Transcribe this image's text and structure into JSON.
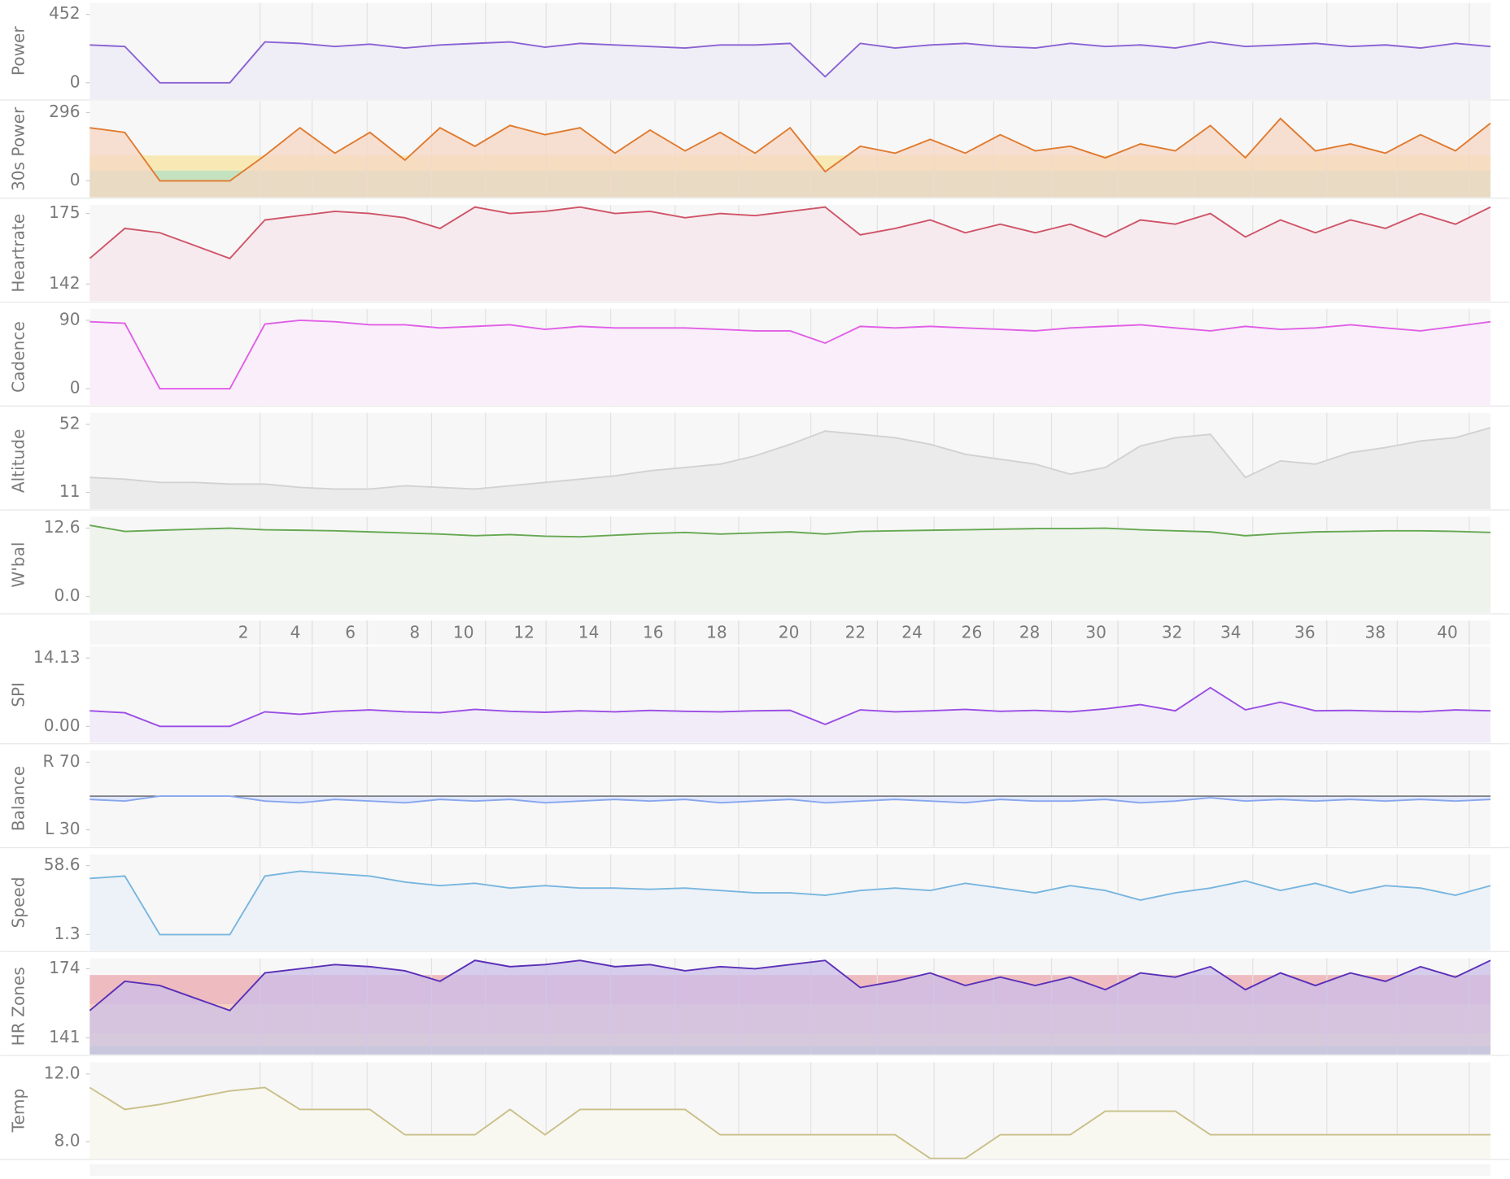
{
  "chart_data": {
    "type": "multi-panel",
    "x": [
      0,
      2,
      4,
      6,
      8,
      10,
      12,
      14,
      16,
      18,
      20,
      22,
      24,
      26,
      28,
      30,
      32,
      34,
      36,
      38,
      40,
      42,
      44,
      46,
      48,
      50,
      52,
      54,
      56,
      58,
      60,
      62,
      64,
      66,
      68,
      70,
      72,
      74,
      76,
      78,
      80
    ],
    "xlim": [
      0,
      80
    ],
    "xticks": [
      {
        "value": 9.18,
        "label": "2"
      },
      {
        "value": 12.15,
        "label": "4"
      },
      {
        "value": 15.29,
        "label": "6"
      },
      {
        "value": 18.97,
        "label": "8"
      },
      {
        "value": 22.05,
        "label": "10"
      },
      {
        "value": 25.51,
        "label": "12"
      },
      {
        "value": 29.2,
        "label": "14"
      },
      {
        "value": 32.88,
        "label": "16"
      },
      {
        "value": 36.51,
        "label": "18"
      },
      {
        "value": 40.63,
        "label": "20"
      },
      {
        "value": 44.43,
        "label": "22"
      },
      {
        "value": 47.67,
        "label": "24"
      },
      {
        "value": 51.08,
        "label": "26"
      },
      {
        "value": 54.38,
        "label": "28"
      },
      {
        "value": 58.17,
        "label": "30"
      },
      {
        "value": 62.52,
        "label": "32"
      },
      {
        "value": 65.87,
        "label": "34"
      },
      {
        "value": 70.1,
        "label": "36"
      },
      {
        "value": 74.12,
        "label": "38"
      },
      {
        "value": 78.24,
        "label": "40"
      }
    ],
    "grid": true,
    "panels": [
      {
        "type": "area",
        "y_label": "Power",
        "color": "#8a62d4",
        "fill": "#efedf6",
        "ylim": [
          -108,
          528
        ],
        "yticks": [
          0,
          452
        ],
        "values": [
          250,
          240,
          0,
          0,
          0,
          270,
          260,
          240,
          255,
          230,
          250,
          260,
          270,
          235,
          260,
          250,
          240,
          230,
          250,
          250,
          260,
          40,
          260,
          230,
          250,
          260,
          240,
          230,
          260,
          240,
          250,
          230,
          270,
          240,
          250,
          260,
          240,
          250,
          230,
          260,
          240
        ]
      },
      {
        "type": "area",
        "y_label": "30s Power",
        "color": "#e07a2e",
        "fill": "#f6d7c4",
        "ylim": [
          -71,
          346
        ],
        "yticks": [
          0,
          296
        ],
        "zones": [
          {
            "from": -71,
            "to": 45,
            "color": "#c4e2c0"
          },
          {
            "from": 45,
            "to": 110,
            "color": "#f8e9b4"
          }
        ],
        "values": [
          230,
          210,
          0,
          0,
          0,
          110,
          230,
          120,
          210,
          90,
          230,
          150,
          240,
          200,
          230,
          120,
          220,
          130,
          210,
          120,
          230,
          40,
          150,
          120,
          180,
          120,
          200,
          130,
          150,
          100,
          160,
          130,
          240,
          100,
          270,
          130,
          160,
          120,
          200,
          130,
          250
        ]
      },
      {
        "type": "area",
        "y_label": "Heartrate",
        "color": "#cf5468",
        "fill": "#f7eaee",
        "ylim": [
          134,
          179
        ],
        "yticks": [
          142,
          175
        ],
        "values": [
          154,
          168,
          166,
          160,
          154,
          172,
          174,
          176,
          175,
          173,
          168,
          178,
          175,
          176,
          178,
          175,
          176,
          173,
          175,
          174,
          176,
          178,
          165,
          168,
          172,
          166,
          170,
          166,
          170,
          164,
          172,
          170,
          175,
          164,
          172,
          166,
          172,
          168,
          175,
          170,
          178
        ]
      },
      {
        "type": "area",
        "y_label": "Cadence",
        "color": "#e15fe6",
        "fill": "#f9eefa",
        "ylim": [
          -21.5,
          105
        ],
        "yticks": [
          0,
          90
        ],
        "values": [
          88,
          86,
          0,
          0,
          0,
          85,
          90,
          88,
          84,
          84,
          80,
          82,
          84,
          78,
          82,
          80,
          80,
          80,
          78,
          76,
          76,
          60,
          82,
          80,
          82,
          80,
          78,
          76,
          80,
          82,
          84,
          80,
          76,
          82,
          78,
          80,
          84,
          80,
          76,
          82,
          88
        ]
      },
      {
        "type": "area",
        "y_label": "Altitude",
        "color": "#d2d2d2",
        "fill": "#ebebeb",
        "ylim": [
          1,
          59
        ],
        "yticks": [
          11,
          52
        ],
        "values": [
          20,
          19,
          17,
          17,
          16,
          16,
          14,
          13,
          13,
          15,
          14,
          13,
          15,
          17,
          19,
          21,
          24,
          26,
          28,
          33,
          40,
          48,
          46,
          44,
          40,
          34,
          31,
          28,
          22,
          26,
          39,
          44,
          46,
          20,
          30,
          28,
          35,
          38,
          42,
          44,
          50
        ]
      },
      {
        "type": "area",
        "y_label": "W'bal",
        "color": "#66a852",
        "fill": "#eef3ec",
        "ylim": [
          -3,
          14.7
        ],
        "yticks": [
          {
            "value": 0,
            "label": "0.0"
          },
          12.6
        ],
        "values": [
          13.1,
          12.0,
          12.2,
          12.4,
          12.6,
          12.3,
          12.2,
          12.1,
          11.9,
          11.7,
          11.5,
          11.2,
          11.4,
          11.1,
          11.0,
          11.3,
          11.6,
          11.8,
          11.5,
          11.7,
          11.9,
          11.5,
          12.0,
          12.1,
          12.2,
          12.3,
          12.4,
          12.5,
          12.5,
          12.6,
          12.3,
          12.1,
          11.9,
          11.2,
          11.6,
          11.9,
          12.0,
          12.1,
          12.1,
          12.0,
          11.8
        ]
      },
      {
        "type": "area",
        "y_label": "SPI",
        "color": "#9a4ce4",
        "fill": "#f1ecf8",
        "ylim": [
          -3.4,
          16.5
        ],
        "yticks": [
          {
            "value": 0,
            "label": "0.00"
          },
          14.13
        ],
        "values": [
          3.2,
          2.8,
          0,
          0,
          0,
          3.0,
          2.5,
          3.1,
          3.4,
          3.0,
          2.8,
          3.5,
          3.1,
          2.9,
          3.2,
          3.0,
          3.3,
          3.1,
          3.0,
          3.2,
          3.3,
          0.4,
          3.4,
          3.0,
          3.2,
          3.5,
          3.1,
          3.3,
          3.0,
          3.6,
          4.5,
          3.2,
          8.0,
          3.4,
          5.0,
          3.2,
          3.3,
          3.1,
          3.0,
          3.4,
          3.2
        ]
      },
      {
        "type": "balance",
        "y_label": "Balance",
        "color": "#88a6ee",
        "fill": "#dfe6fb",
        "ylim": [
          20,
          77
        ],
        "yticks": [
          {
            "value": 30,
            "label": "L 30"
          },
          {
            "value": 70,
            "label": "R 70"
          }
        ],
        "baseline": 50,
        "values": [
          48,
          47,
          50,
          50,
          50,
          47,
          46,
          48,
          47,
          46,
          48,
          47,
          48,
          46,
          47,
          48,
          47,
          48,
          46,
          47,
          48,
          46,
          47,
          48,
          47,
          46,
          48,
          47,
          47,
          48,
          46,
          47,
          49,
          47,
          48,
          47,
          48,
          47,
          48,
          47,
          48
        ]
      },
      {
        "type": "area",
        "y_label": "Speed",
        "color": "#78b6df",
        "fill": "#edf2f8",
        "ylim": [
          -12,
          68
        ],
        "yticks": [
          1.3,
          58.6
        ],
        "values": [
          48,
          50,
          1.3,
          1.3,
          1.3,
          50,
          54,
          52,
          50,
          45,
          42,
          44,
          40,
          42,
          40,
          40,
          39,
          40,
          38,
          36,
          36,
          34,
          38,
          40,
          38,
          44,
          40,
          36,
          42,
          38,
          30,
          36,
          40,
          46,
          38,
          44,
          36,
          42,
          40,
          34,
          42
        ]
      },
      {
        "type": "area",
        "y_label": "HR Zones",
        "color": "#5a2fb8",
        "fill": "#cbbde8",
        "ylim": [
          133,
          179
        ],
        "yticks": [
          141,
          174
        ],
        "zones": [
          {
            "from": 133,
            "to": 137,
            "color": "#c4e2c0"
          },
          {
            "from": 137,
            "to": 143,
            "color": "#f8e9b4"
          },
          {
            "from": 143,
            "to": 157,
            "color": "#f6d2bf"
          },
          {
            "from": 157,
            "to": 171,
            "color": "#eebcc0"
          }
        ],
        "values": [
          154,
          168,
          166,
          160,
          154,
          172,
          174,
          176,
          175,
          173,
          168,
          178,
          175,
          176,
          178,
          175,
          176,
          173,
          175,
          174,
          176,
          178,
          165,
          168,
          172,
          166,
          170,
          166,
          170,
          164,
          172,
          170,
          175,
          164,
          172,
          166,
          172,
          168,
          175,
          170,
          178
        ]
      },
      {
        "type": "area",
        "y_label": "Temp",
        "color": "#c9bf88",
        "fill": "#f8f7f0",
        "ylim": [
          7,
          12.7
        ],
        "yticks": [
          {
            "value": 8,
            "label": "8.0"
          },
          {
            "value": 12,
            "label": "12.0"
          }
        ],
        "values": [
          11.2,
          9.9,
          10.2,
          10.6,
          11.0,
          11.2,
          9.9,
          9.9,
          9.9,
          8.4,
          8.4,
          8.4,
          9.9,
          8.4,
          9.9,
          9.9,
          9.9,
          9.9,
          8.4,
          8.4,
          8.4,
          8.4,
          8.4,
          8.4,
          7.0,
          7.0,
          8.4,
          8.4,
          8.4,
          9.8,
          9.8,
          9.8,
          8.4,
          8.4,
          8.4,
          8.4,
          8.4,
          8.4,
          8.4,
          8.4,
          8.4
        ]
      }
    ]
  }
}
